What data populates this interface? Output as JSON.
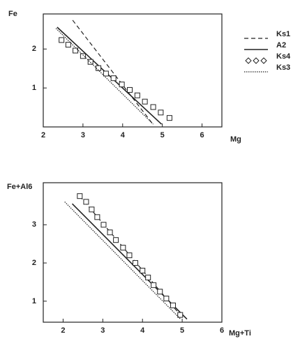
{
  "chart_data": [
    {
      "type": "line",
      "x_label": "Mg",
      "y_label": "Fe",
      "xlim": [
        2,
        6.5
      ],
      "ylim": [
        0,
        2.9
      ],
      "xticks": [
        2,
        3,
        4,
        5,
        6
      ],
      "yticks": [
        1,
        2
      ],
      "legend": "right",
      "series": [
        {
          "name": "Ks1",
          "style": "dashed",
          "color": "#222222",
          "x": [
            2.74,
            4.74
          ],
          "values": [
            2.74,
            0.1
          ]
        },
        {
          "name": "A2",
          "style": "solid",
          "color": "#222222",
          "x": [
            2.35,
            4.98
          ],
          "values": [
            2.56,
            0.07
          ]
        },
        {
          "name": "Ks4",
          "style": "square",
          "color": "#222222",
          "x": [
            2.46,
            2.63,
            2.81,
            3.0,
            3.19,
            3.39,
            3.58,
            3.77,
            3.98,
            4.18,
            4.37,
            4.56,
            4.77,
            4.96,
            5.18
          ],
          "values": [
            2.23,
            2.11,
            1.96,
            1.82,
            1.67,
            1.51,
            1.37,
            1.25,
            1.09,
            0.95,
            0.81,
            0.65,
            0.51,
            0.37,
            0.23
          ]
        },
        {
          "name": "Ks3",
          "style": "dotted",
          "color": "#222222",
          "x": [
            2.32,
            4.77
          ],
          "values": [
            2.53,
            0.07
          ]
        }
      ]
    },
    {
      "type": "line",
      "x_label": "Mg+Ti",
      "y_label": "Fe+Al6",
      "xlim": [
        1.5,
        6
      ],
      "ylim": [
        0.45,
        4.1
      ],
      "xticks": [
        2,
        3,
        4,
        5,
        6
      ],
      "yticks": [
        1,
        2,
        3
      ],
      "series": [
        {
          "style": "dashed",
          "color": "#222222",
          "x": [
            2.42,
            5.0
          ],
          "values": [
            3.75,
            0.58
          ]
        },
        {
          "style": "solid",
          "color": "#222222",
          "x": [
            2.23,
            5.12
          ],
          "values": [
            3.55,
            0.53
          ]
        },
        {
          "style": "square",
          "color": "#222222",
          "x": [
            2.42,
            2.58,
            2.72,
            2.86,
            3.02,
            3.18,
            3.33,
            3.51,
            3.67,
            3.82,
            4.0,
            4.14,
            4.28,
            4.44,
            4.6,
            4.77,
            4.95
          ],
          "values": [
            3.75,
            3.6,
            3.4,
            3.2,
            3.0,
            2.8,
            2.6,
            2.4,
            2.2,
            2.0,
            1.8,
            1.62,
            1.42,
            1.25,
            1.07,
            0.89,
            0.64
          ]
        },
        {
          "style": "dotted",
          "color": "#222222",
          "x": [
            2.04,
            4.96
          ],
          "values": [
            3.6,
            0.53
          ]
        }
      ]
    }
  ]
}
